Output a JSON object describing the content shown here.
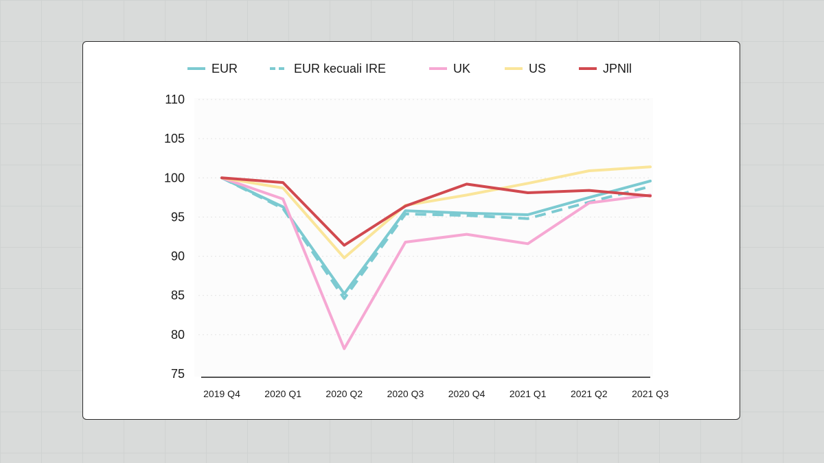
{
  "chart_data": {
    "type": "line",
    "categories": [
      "2019 Q4",
      "2020 Q1",
      "2020 Q2",
      "2020 Q3",
      "2020 Q4",
      "2021 Q1",
      "2021 Q2",
      "2021 Q3"
    ],
    "ylim": [
      75,
      110
    ],
    "yticks": [
      75,
      80,
      85,
      90,
      95,
      100,
      105,
      110
    ],
    "grid": true,
    "legend_position": "top",
    "title": "",
    "xlabel": "",
    "ylabel": "",
    "series": [
      {
        "name": "EUR",
        "color": "#7ccad1",
        "style": "solid",
        "values": [
          100,
          96.3,
          85.2,
          95.8,
          95.5,
          95.3,
          97.5,
          99.6
        ]
      },
      {
        "name": "EUR kecuali IRE",
        "color": "#7ccad1",
        "style": "dashed",
        "values": [
          100,
          96.1,
          84.6,
          95.4,
          95.2,
          94.8,
          96.9,
          98.9
        ]
      },
      {
        "name": "UK",
        "color": "#f6a8d3",
        "style": "solid",
        "values": [
          100,
          97.3,
          78.2,
          91.8,
          92.8,
          91.6,
          96.8,
          97.8
        ]
      },
      {
        "name": "US",
        "color": "#fae59a",
        "style": "solid",
        "values": [
          100,
          98.7,
          89.8,
          96.5,
          97.8,
          99.3,
          100.9,
          101.4
        ]
      },
      {
        "name": "JPNll",
        "color": "#d1494f",
        "style": "solid",
        "values": [
          100,
          99.4,
          91.4,
          96.4,
          99.2,
          98.1,
          98.4,
          97.7
        ]
      }
    ]
  }
}
